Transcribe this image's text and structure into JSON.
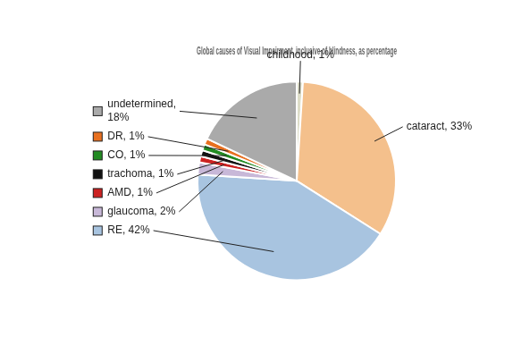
{
  "chart_data": {
    "type": "pie",
    "title": "Global causes of Visual Impairment, inclusive of blindness, as percentage",
    "categories": [
      "childhood",
      "cataract",
      "RE",
      "glaucoma",
      "AMD",
      "trachoma",
      "CO",
      "DR",
      "undetermined"
    ],
    "values": [
      1,
      33,
      42,
      2,
      1,
      1,
      1,
      1,
      18
    ],
    "colors": [
      "#DDDDC8",
      "#F4C08C",
      "#A8C4E0",
      "#C8B8D8",
      "#CC2222",
      "#111111",
      "#228B22",
      "#E87020",
      "#AAAAAA"
    ],
    "data_labels": true,
    "value_labels": [
      "childhood, 1%",
      "cataract, 33%",
      "RE, 42%",
      "glaucoma, 2%",
      "AMD, 1%",
      "trachoma, 1%",
      "CO, 1%",
      "DR, 1%",
      "undetermined,\n18%"
    ]
  }
}
